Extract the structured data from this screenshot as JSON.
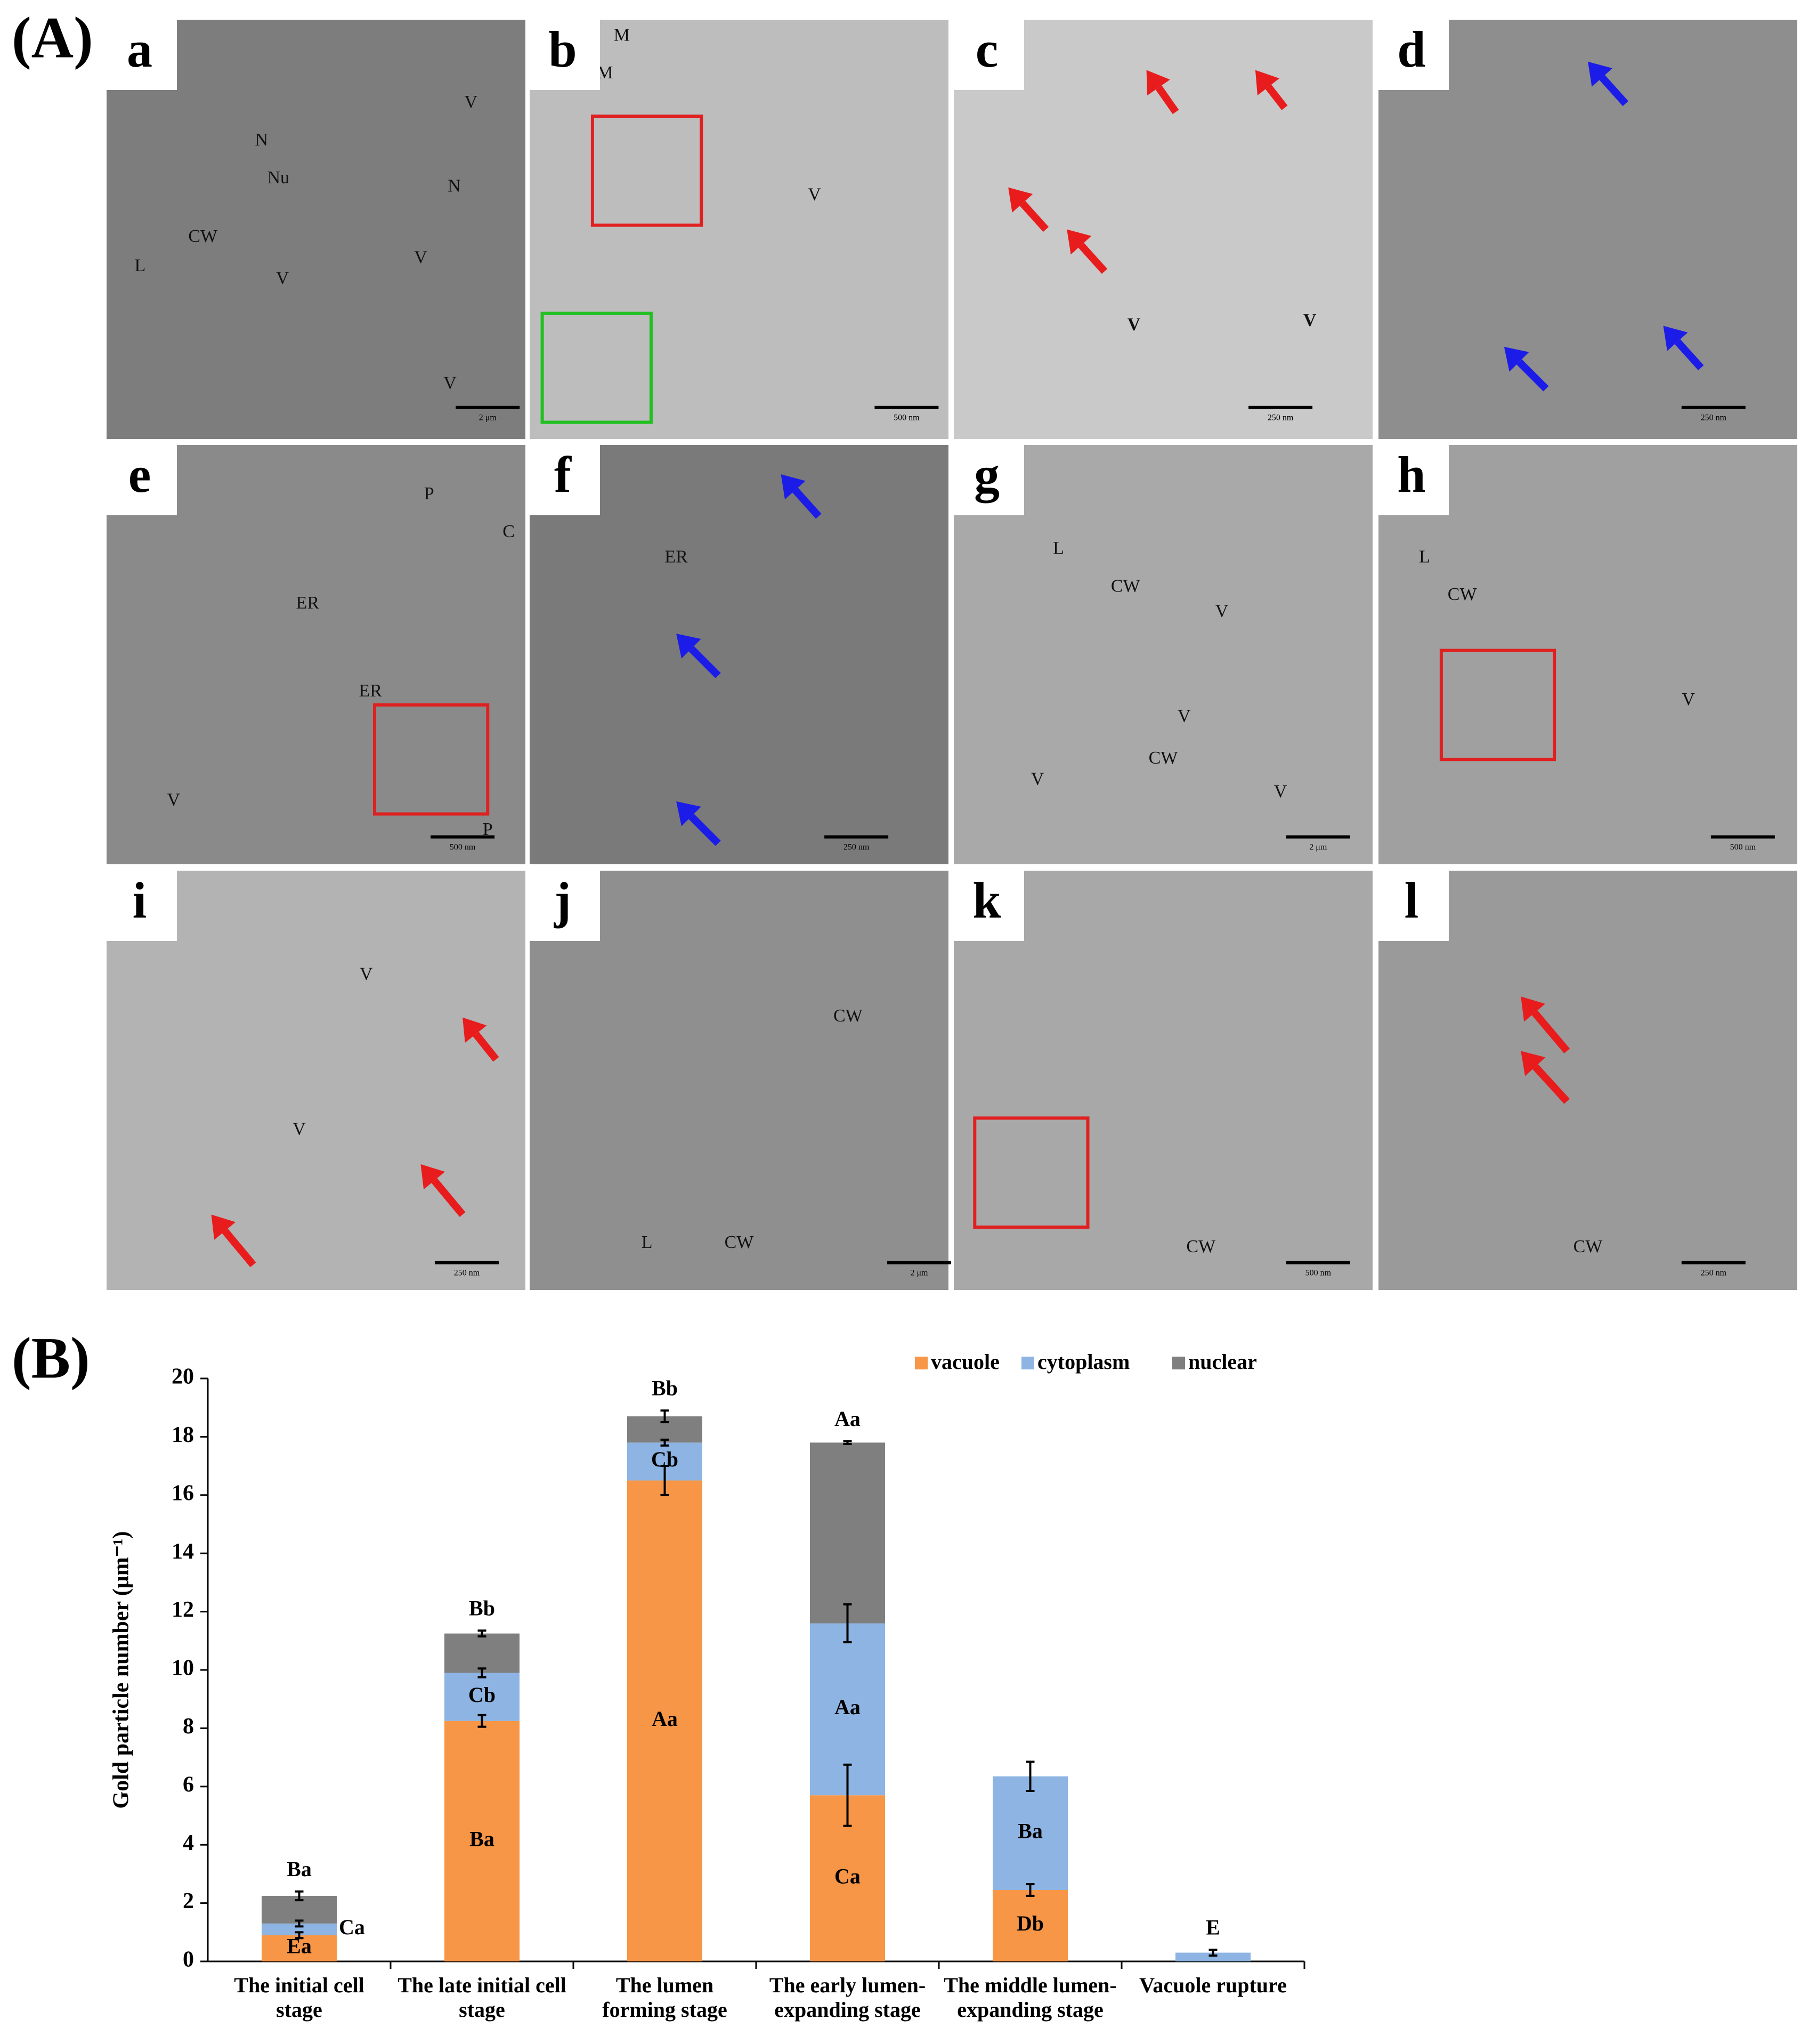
{
  "panel_A": {
    "label": "(A)",
    "panels": [
      {
        "letter": "a",
        "labels": [
          "N",
          "Nu",
          "V",
          "N",
          "V",
          "CW",
          "L",
          "V",
          "V"
        ],
        "scale_bar": "2 μm"
      },
      {
        "letter": "b",
        "labels": [
          "M",
          "M",
          "V"
        ],
        "scale_bar": "500 nm"
      },
      {
        "letter": "c",
        "labels": [
          "V",
          "V"
        ],
        "scale_bar": "250 nm"
      },
      {
        "letter": "d",
        "labels": [],
        "scale_bar": "250 nm"
      },
      {
        "letter": "e",
        "labels": [
          "P",
          "ER",
          "ER",
          "V",
          "P",
          "C"
        ],
        "scale_bar": "500 nm"
      },
      {
        "letter": "f",
        "labels": [
          "ER"
        ],
        "scale_bar": "250 nm"
      },
      {
        "letter": "g",
        "labels": [
          "L",
          "CW",
          "V",
          "V",
          "CW",
          "V",
          "V"
        ],
        "scale_bar": "2 μm"
      },
      {
        "letter": "h",
        "labels": [
          "L",
          "CW",
          "V"
        ],
        "scale_bar": "500 nm"
      },
      {
        "letter": "i",
        "labels": [
          "V",
          "V"
        ],
        "scale_bar": "250 nm"
      },
      {
        "letter": "j",
        "labels": [
          "CW",
          "L",
          "CW"
        ],
        "scale_bar": "2 μm"
      },
      {
        "letter": "k",
        "labels": [
          "CW"
        ],
        "scale_bar": "500 nm"
      },
      {
        "letter": "l",
        "labels": [
          "CW"
        ],
        "scale_bar": "250 nm"
      }
    ]
  },
  "panel_B": {
    "label": "(B)"
  },
  "chart_data": {
    "type": "bar",
    "stacked": true,
    "ylabel": "Gold particle number (μm⁻¹)",
    "categories": [
      "The initial cell stage",
      "The late initial cell stage",
      "The lumen forming stage",
      "The early lumen-expanding stage",
      "The middle lumen-expanding stage",
      "Vacuole rupture"
    ],
    "series": [
      {
        "name": "vacuole",
        "color": "#f79646",
        "values": [
          0.9,
          8.25,
          16.5,
          5.7,
          2.45,
          0
        ],
        "errors": [
          0.1,
          0.2,
          0.5,
          1.05,
          0.2,
          null
        ],
        "letters": [
          "Ea",
          "Ba",
          "Aa",
          "Ca",
          "Db",
          null
        ]
      },
      {
        "name": "cytoplasm",
        "color": "#8db4e2",
        "values": [
          0.4,
          1.65,
          1.3,
          5.9,
          3.9,
          0.3
        ],
        "errors": [
          0.1,
          0.15,
          0.1,
          0.65,
          0.5,
          0.1
        ],
        "letters": [
          "Ca",
          "Cb",
          "Cb",
          "Aa",
          "Ba",
          "E"
        ]
      },
      {
        "name": "nuclear",
        "color": "#7f7f7f",
        "values": [
          0.95,
          1.35,
          0.9,
          6.2,
          0,
          0
        ],
        "errors": [
          0.15,
          0.1,
          0.2,
          0.05,
          null,
          null
        ],
        "letters": [
          "Ba",
          "Bb",
          "Bb",
          "Aa",
          null,
          null
        ]
      }
    ],
    "ylim": [
      0,
      20
    ],
    "yticks": [
      0,
      2,
      4,
      6,
      8,
      10,
      12,
      14,
      16,
      18,
      20
    ],
    "grid": false,
    "legend": "top"
  }
}
